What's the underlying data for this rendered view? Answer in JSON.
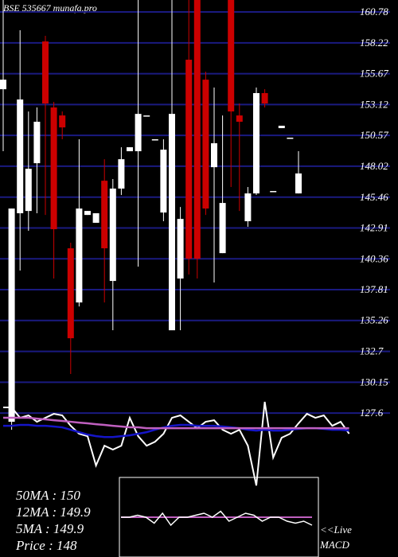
{
  "chart_data": {
    "type": "candlestick",
    "title": "BSE 535667 munafa.pro",
    "up_color": "#ffffff",
    "down_color": "#cc0000",
    "grid_color": "#1a1a80",
    "ylim": [
      120.96,
      161.77
    ],
    "yticks": [
      160.78,
      158.22,
      155.67,
      153.12,
      150.57,
      148.02,
      145.46,
      142.91,
      140.36,
      137.81,
      135.26,
      132.7,
      130.15,
      127.6
    ],
    "open": [
      154.39,
      126.88,
      144.13,
      144.32,
      148.27,
      158.34,
      152.88,
      152.22,
      141.23,
      136.75,
      143.99,
      143.34,
      146.82,
      138.53,
      146.17,
      149.26,
      149.26,
      152.22,
      150.25,
      144.19,
      134.45,
      138.73,
      156.83,
      161.77,
      155.18,
      147.94,
      140.83,
      161.77,
      152.22,
      143.47,
      145.77,
      154.07,
      145.97,
      151.17,
      150.38,
      145.77
    ],
    "high": [
      161.77,
      144.52,
      159.27,
      152.55,
      152.88,
      158.81,
      153.34,
      152.55,
      141.69,
      150.25,
      144.32,
      144.13,
      148.6,
      146.96,
      149.59,
      149.59,
      161.77,
      152.22,
      150.25,
      150.25,
      161.77,
      144.65,
      161.77,
      161.77,
      155.84,
      154.53,
      152.22,
      161.77,
      153.21,
      146.3,
      154.53,
      154.39,
      145.97,
      151.37,
      150.38,
      149.26
    ],
    "low": [
      149.26,
      126.22,
      139.39,
      142.68,
      144.13,
      143.99,
      138.73,
      150.25,
      130.83,
      136.42,
      143.99,
      143.34,
      136.75,
      134.45,
      145.64,
      149.26,
      139.71,
      152.22,
      150.25,
      143.47,
      134.45,
      134.45,
      139.06,
      138.73,
      143.99,
      138.4,
      140.83,
      146.3,
      144.32,
      143.01,
      145.64,
      152.88,
      145.97,
      151.17,
      150.38,
      145.77
    ],
    "close": [
      155.18,
      144.52,
      153.54,
      147.81,
      151.7,
      153.21,
      142.81,
      151.23,
      133.79,
      144.52,
      144.32,
      144.13,
      141.23,
      146.17,
      148.6,
      149.59,
      152.35,
      152.22,
      150.25,
      149.39,
      152.35,
      143.66,
      140.37,
      140.37,
      144.52,
      149.92,
      144.98,
      152.55,
      151.7,
      145.77,
      154.07,
      153.21,
      145.97,
      151.37,
      150.38,
      147.42
    ],
    "lines": [
      {
        "color": "#ffffff",
        "values": [
          128.07,
          128.07,
          127.21,
          127.41,
          126.88,
          127.21,
          127.54,
          127.41,
          126.55,
          125.89,
          125.69,
          123.26,
          124.9,
          124.58,
          124.9,
          127.21,
          125.69,
          124.9,
          125.23,
          125.89,
          127.21,
          127.41,
          126.88,
          126.35,
          126.88,
          127.01,
          126.22,
          125.89,
          126.22,
          124.9,
          121.61,
          128.53,
          123.92,
          125.56,
          125.89,
          126.75,
          127.54,
          127.21,
          127.41,
          126.55,
          126.88,
          125.89
        ]
      },
      {
        "color": "#1515c8",
        "values": [
          126.55,
          126.55,
          126.62,
          126.62,
          126.55,
          126.55,
          126.49,
          126.42,
          126.22,
          126.02,
          125.82,
          125.69,
          125.62,
          125.62,
          125.69,
          125.76,
          125.89,
          126.02,
          126.22,
          126.42,
          126.55,
          126.62,
          126.62,
          126.55,
          126.55,
          126.55,
          126.49,
          126.42,
          126.35,
          126.22,
          126.15,
          126.22,
          126.15,
          126.15,
          126.22,
          126.29,
          126.35,
          126.35,
          126.29,
          126.22,
          126.22,
          126.15
        ]
      },
      {
        "color": "#c060c0",
        "values": [
          127.21,
          127.21,
          127.21,
          127.21,
          127.14,
          127.08,
          127.01,
          126.95,
          126.88,
          126.81,
          126.75,
          126.68,
          126.62,
          126.55,
          126.49,
          126.42,
          126.42,
          126.35,
          126.35,
          126.35,
          126.35,
          126.35,
          126.35,
          126.35,
          126.35,
          126.35,
          126.35,
          126.35,
          126.35,
          126.35,
          126.35,
          126.35,
          126.35,
          126.35,
          126.35,
          126.35,
          126.35,
          126.35,
          126.35,
          126.35,
          126.35,
          126.35
        ]
      }
    ],
    "stats": [
      "50MA : 150",
      "12MA : 149.9",
      "5MA : 149.9",
      "Price   : 148"
    ],
    "macd": {
      "labels": [
        "<<Live",
        "MACD"
      ],
      "ylim": [
        -1,
        1
      ],
      "signal": {
        "color": "#c060c0",
        "values": [
          0,
          0,
          0,
          0,
          0,
          0,
          0,
          0,
          0,
          0,
          0,
          0,
          0,
          0,
          0,
          0,
          0,
          0,
          0,
          0,
          0,
          0,
          0,
          0
        ]
      },
      "macd": {
        "color": "#ffffff",
        "values": [
          0,
          0,
          0.05,
          0,
          -0.15,
          0.1,
          -0.2,
          0,
          0,
          0.05,
          0.1,
          0,
          0.15,
          -0.1,
          0,
          0.1,
          0.05,
          -0.1,
          0,
          0,
          -0.1,
          -0.15,
          -0.1,
          -0.2
        ]
      }
    }
  }
}
